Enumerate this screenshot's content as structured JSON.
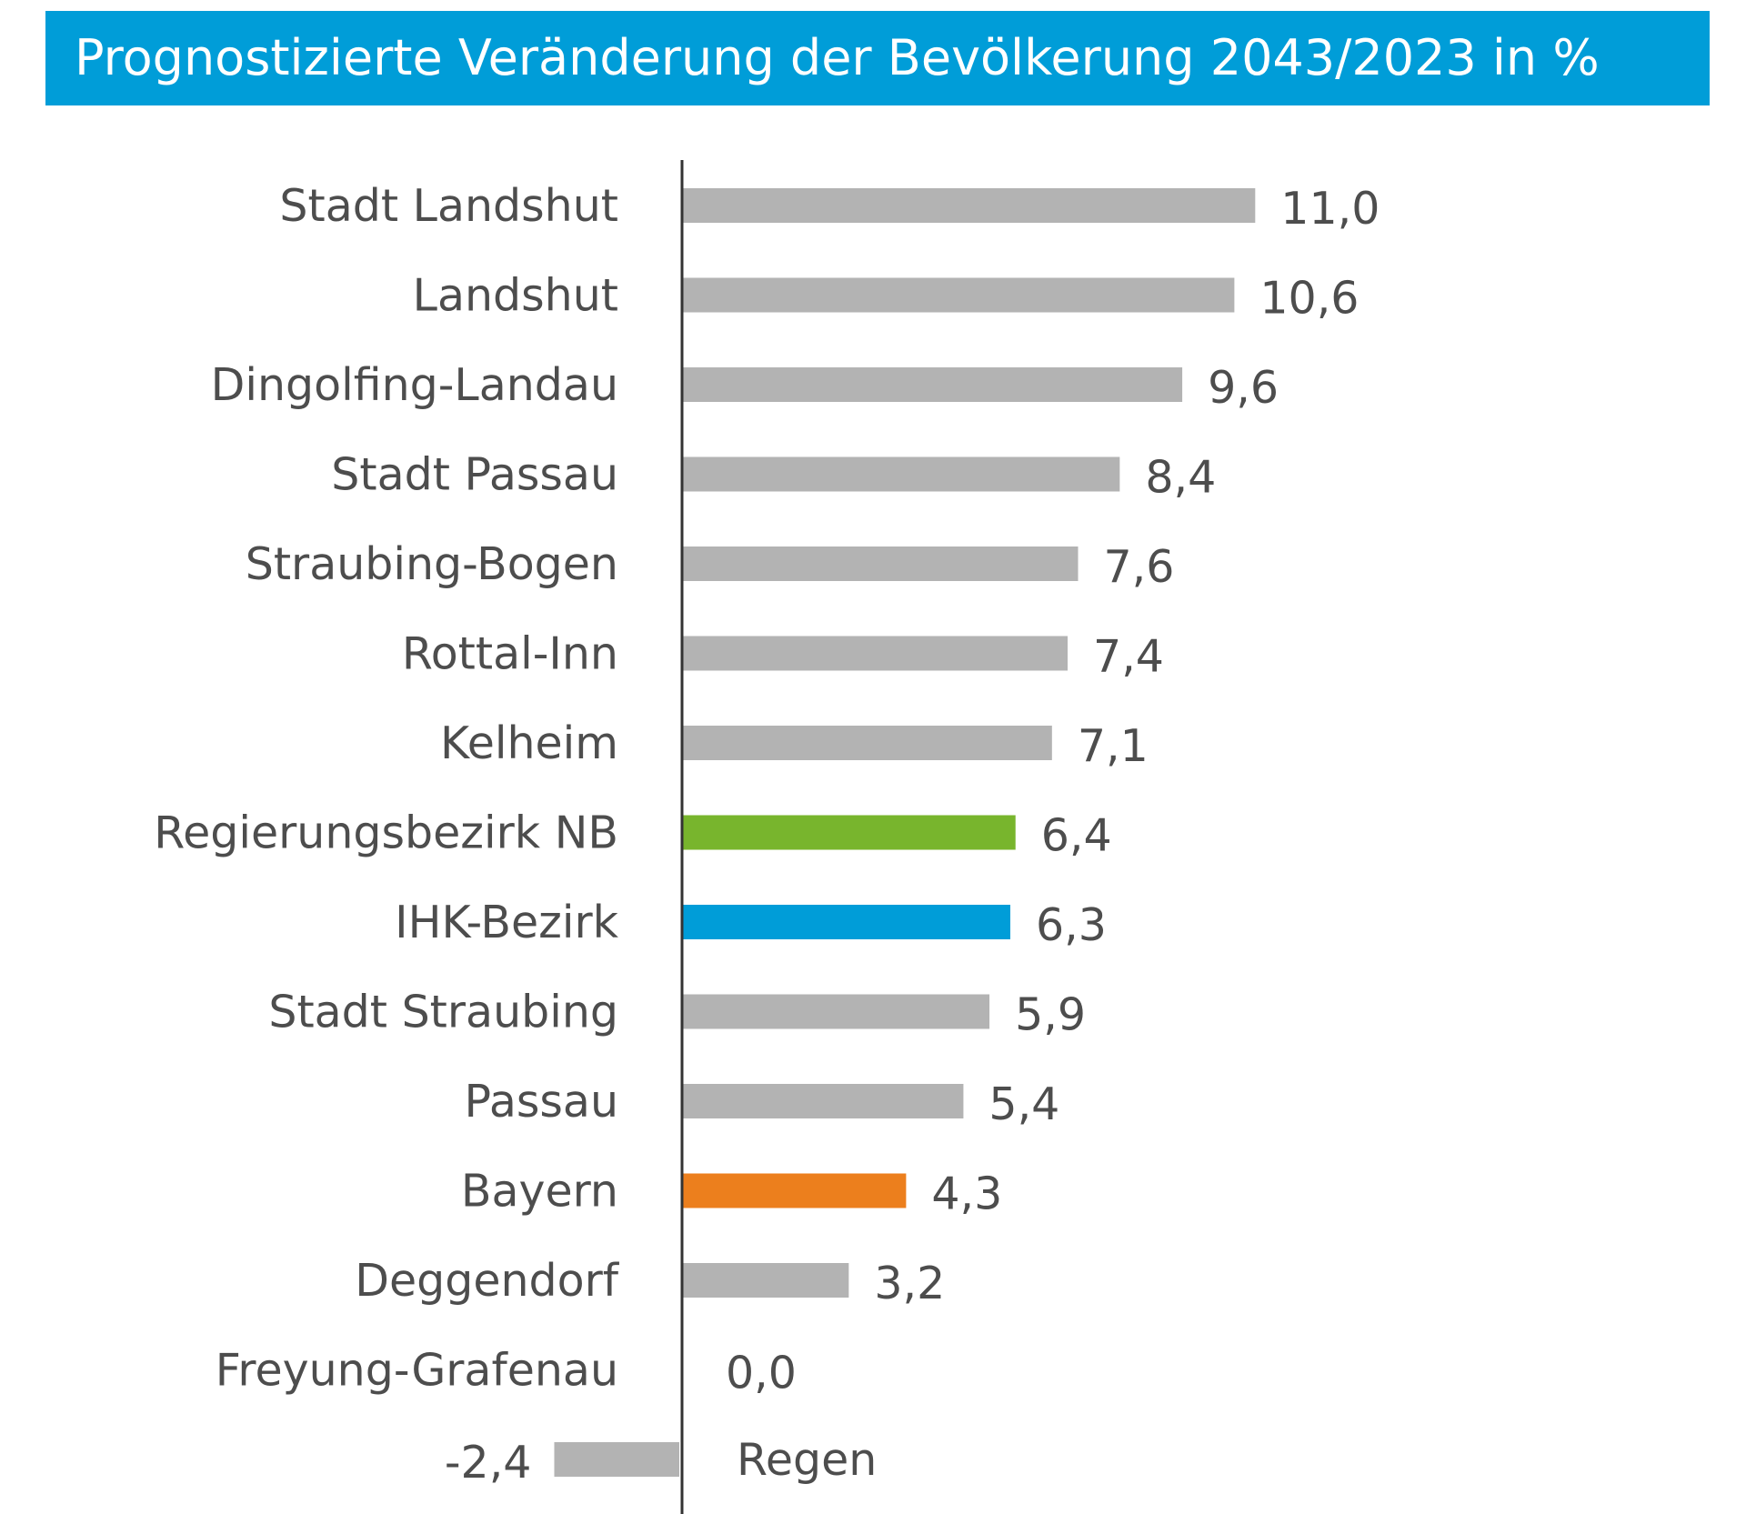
{
  "chart_data": {
    "type": "bar",
    "orientation": "horizontal",
    "title": "Prognostizierte Veränderung der Bevölkerung 2043/2023 in %",
    "xlabel": "",
    "ylabel": "",
    "grid": false,
    "legend": "none",
    "categories": [
      "Stadt Landshut",
      "Landshut",
      "Dingolfing-Landau",
      "Stadt Passau",
      "Straubing-Bogen",
      "Rottal-Inn",
      "Kelheim",
      "Regierungsbezirk NB",
      "IHK-Bezirk",
      "Stadt Straubing",
      "Passau",
      "Bayern",
      "Deggendorf",
      "Freyung-Grafenau",
      "Regen"
    ],
    "values": [
      11.0,
      10.6,
      9.6,
      8.4,
      7.6,
      7.4,
      7.1,
      6.4,
      6.3,
      5.9,
      5.4,
      4.3,
      3.2,
      0.0,
      -2.4
    ],
    "value_labels": [
      "11,0",
      "10,6",
      "9,6",
      "8,4",
      "7,6",
      "7,4",
      "7,1",
      "6,4",
      "6,3",
      "5,9",
      "5,4",
      "4,3",
      "3,2",
      "0,0",
      "-2,4"
    ],
    "bar_colors": [
      "#b3b3b3",
      "#b3b3b3",
      "#b3b3b3",
      "#b3b3b3",
      "#b3b3b3",
      "#b3b3b3",
      "#b3b3b3",
      "#78b52d",
      "#009dd8",
      "#b3b3b3",
      "#b3b3b3",
      "#ec7f1d",
      "#b3b3b3",
      "#b3b3b3",
      "#b3b3b3"
    ],
    "xlim": [
      -2.4,
      11.0
    ]
  },
  "colors": {
    "title_background": "#009dd8",
    "title_text": "#ffffff",
    "axis": "#333333",
    "text": "#4d4d4d"
  }
}
